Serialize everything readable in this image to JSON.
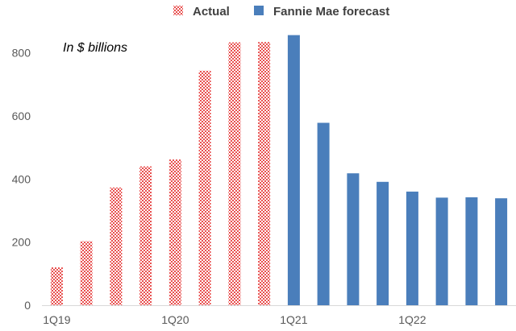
{
  "chart_data": {
    "type": "bar",
    "annotation": "In $ billions",
    "ylim": [
      0,
      860
    ],
    "yticks": [
      0,
      200,
      400,
      600,
      800
    ],
    "grid": false,
    "legend_position": "top",
    "categories": [
      "1Q19",
      "2Q19",
      "3Q19",
      "4Q19",
      "1Q20",
      "2Q20",
      "3Q20",
      "4Q20",
      "1Q21",
      "2Q21",
      "3Q21",
      "4Q21",
      "1Q22",
      "2Q22",
      "3Q22",
      "4Q22"
    ],
    "x_tick_labels": [
      "1Q19",
      "1Q20",
      "1Q21",
      "1Q22"
    ],
    "series": [
      {
        "name": "Actual",
        "color": "#e8504f",
        "pattern": "hatched",
        "values": [
          120,
          203,
          373,
          440,
          462,
          743,
          833,
          834,
          null,
          null,
          null,
          null,
          null,
          null,
          null,
          null
        ]
      },
      {
        "name": "Fannie Mae forecast",
        "color": "#4a7ebb",
        "pattern": "solid",
        "values": [
          null,
          null,
          null,
          null,
          null,
          null,
          null,
          null,
          856,
          578,
          418,
          391,
          360,
          341,
          342,
          339
        ]
      }
    ]
  }
}
